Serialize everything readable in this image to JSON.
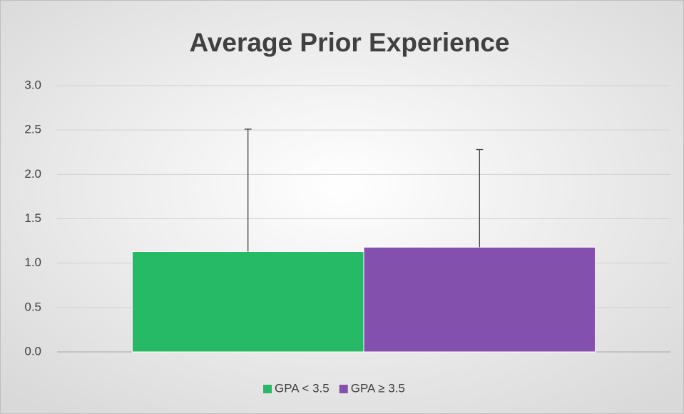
{
  "chart_data": {
    "type": "bar",
    "title": "Average Prior Experience",
    "categories": [
      null
    ],
    "series": [
      {
        "name": "GPA < 3.5",
        "color": "#27ba66",
        "values": [
          1.13
        ],
        "errors": [
          1.38
        ]
      },
      {
        "name": "GPA ≥ 3.5",
        "color": "#8450ad",
        "values": [
          1.18
        ],
        "errors": [
          1.1
        ]
      }
    ],
    "ylim": [
      0,
      3
    ],
    "yticks": [
      {
        "value": 0,
        "label": "0.0"
      },
      0.5,
      {
        "value": 1,
        "label": "1.0"
      },
      1.5,
      {
        "value": 2,
        "label": "2.0"
      },
      2.5,
      {
        "value": 3,
        "label": "3.0"
      }
    ],
    "grid": true,
    "legend": "bottom"
  }
}
